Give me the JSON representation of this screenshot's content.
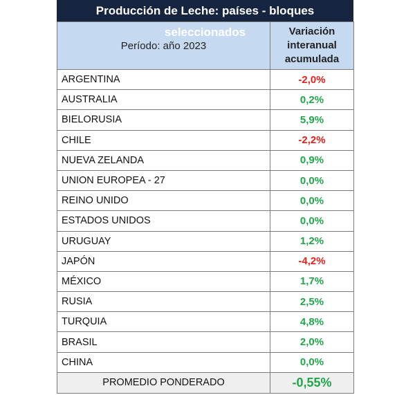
{
  "title": "Producción de Leche: países - bloques seleccionados",
  "header": {
    "period": "Período: año 2023",
    "variation": [
      "Variación",
      "interanual",
      "acumulada"
    ]
  },
  "colors": {
    "negative": "#e3211c",
    "positive": "#1fa64a",
    "title_bg": "#16243f",
    "header_bg": "#c5d9f1"
  },
  "rows": [
    {
      "country": "ARGENTINA",
      "value": "-2,0%"
    },
    {
      "country": "AUSTRALIA",
      "value": "0,2%"
    },
    {
      "country": "BIELORUSIA",
      "value": "5,9%"
    },
    {
      "country": "CHILE",
      "value": "-2,2%"
    },
    {
      "country": "NUEVA ZELANDA",
      "value": "0,9%"
    },
    {
      "country": "UNION EUROPEA - 27",
      "value": "0,0%"
    },
    {
      "country": "REINO UNIDO",
      "value": "0,0%"
    },
    {
      "country": "ESTADOS UNIDOS",
      "value": "0,0%"
    },
    {
      "country": "URUGUAY",
      "value": "1,2%"
    },
    {
      "country": "JAPÓN",
      "value": "-4,2%"
    },
    {
      "country": "MÉXICO",
      "value": "1,7%"
    },
    {
      "country": "RUSIA",
      "value": "2,5%"
    },
    {
      "country": "TURQUIA",
      "value": "4,8%"
    },
    {
      "country": "BRASIL",
      "value": "2,0%"
    },
    {
      "country": "CHINA",
      "value": "0,0%"
    }
  ],
  "average": {
    "label": "PROMEDIO PONDERADO",
    "value": "-0,55%"
  }
}
